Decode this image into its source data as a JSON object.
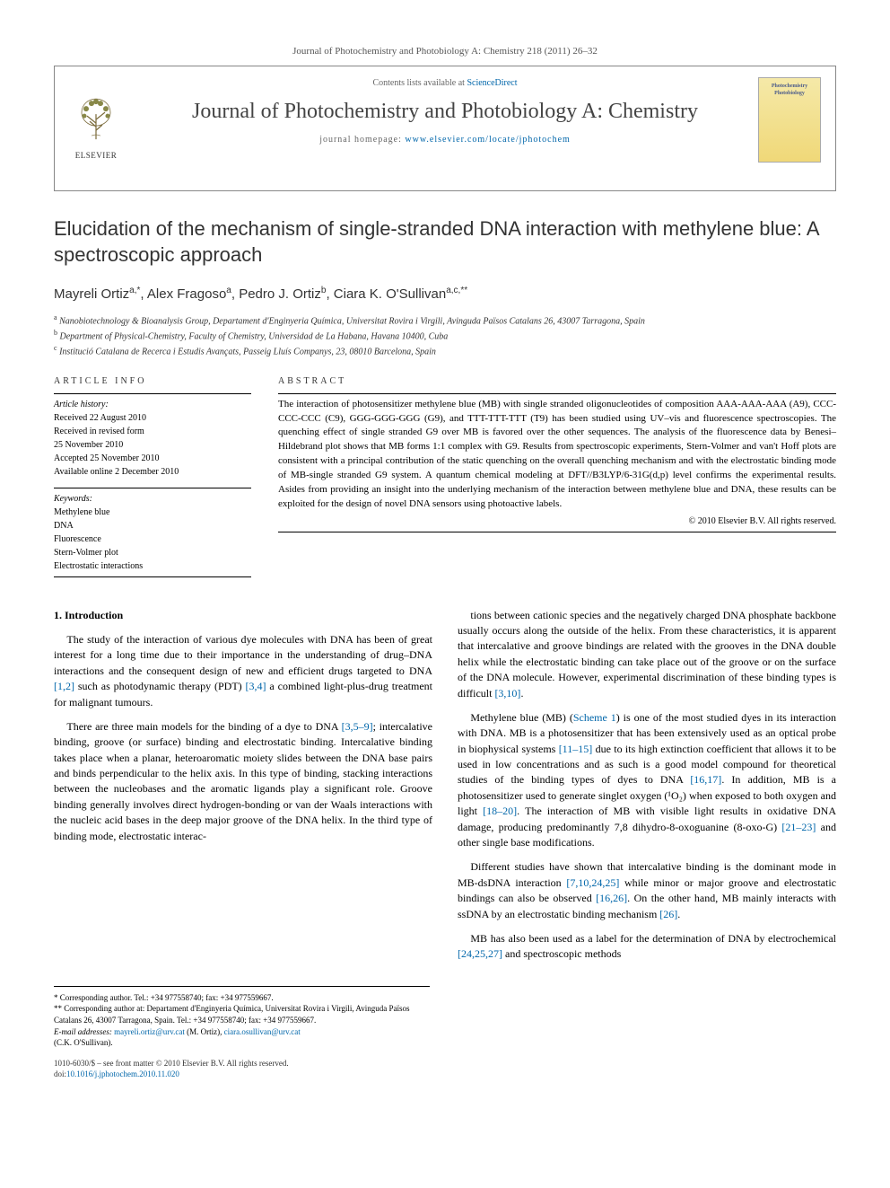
{
  "citation": "Journal of Photochemistry and Photobiology A: Chemistry 218 (2011) 26–32",
  "header": {
    "contents_prefix": "Contents lists available at ",
    "contents_link": "ScienceDirect",
    "journal_name": "Journal of Photochemistry and Photobiology A: Chemistry",
    "homepage_prefix": "journal homepage: ",
    "homepage_link": "www.elsevier.com/locate/jphotochem",
    "publisher": "ELSEVIER",
    "cover_title": "Photochemistry Photobiology"
  },
  "title": "Elucidation of the mechanism of single-stranded DNA interaction with methylene blue: A spectroscopic approach",
  "authors_html": "Mayreli Ortiz<sup>a,*</sup>, Alex Fragoso<sup>a</sup>, Pedro J. Ortiz<sup>b</sup>, Ciara K. O'Sullivan<sup>a,c,**</sup>",
  "affiliations": [
    "Nanobiotechnology & Bioanalysis Group, Departament d'Enginyeria Química, Universitat Rovira i Virgili, Avinguda Països Catalans 26, 43007 Tarragona, Spain",
    "Department of Physical-Chemistry, Faculty of Chemistry, Universidad de La Habana, Havana 10400, Cuba",
    "Institució Catalana de Recerca i Estudis Avançats, Passeig Lluís Companys, 23, 08010 Barcelona, Spain"
  ],
  "aff_labels": [
    "a",
    "b",
    "c"
  ],
  "info": {
    "heading": "ARTICLE INFO",
    "history_label": "Article history:",
    "history": [
      "Received 22 August 2010",
      "Received in revised form",
      "25 November 2010",
      "Accepted 25 November 2010",
      "Available online 2 December 2010"
    ],
    "keywords_label": "Keywords:",
    "keywords": [
      "Methylene blue",
      "DNA",
      "Fluorescence",
      "Stern-Volmer plot",
      "Electrostatic interactions"
    ]
  },
  "abstract": {
    "heading": "ABSTRACT",
    "text": "The interaction of photosensitizer methylene blue (MB) with single stranded oligonucleotides of composition AAA-AAA-AAA (A9), CCC-CCC-CCC (C9), GGG-GGG-GGG (G9), and TTT-TTT-TTT (T9) has been studied using UV–vis and fluorescence spectroscopies. The quenching effect of single stranded G9 over MB is favored over the other sequences. The analysis of the fluorescence data by Benesi–Hildebrand plot shows that MB forms 1:1 complex with G9. Results from spectroscopic experiments, Stern-Volmer and van't Hoff plots are consistent with a principal contribution of the static quenching on the overall quenching mechanism and with the electrostatic binding mode of MB-single stranded G9 system. A quantum chemical modeling at DFT//B3LYP/6-31G(d,p) level confirms the experimental results. Asides from providing an insight into the underlying mechanism of the interaction between methylene blue and DNA, these results can be exploited for the design of novel DNA sensors using photoactive labels.",
    "copyright": "© 2010 Elsevier B.V. All rights reserved."
  },
  "body": {
    "section_heading": "1. Introduction",
    "col1": [
      "The study of the interaction of various dye molecules with DNA has been of great interest for a long time due to their importance in the understanding of drug–DNA interactions and the consequent design of new and efficient drugs targeted to DNA [1,2] such as photodynamic therapy (PDT) [3,4] a combined light-plus-drug treatment for malignant tumours.",
      "There are three main models for the binding of a dye to DNA [3,5–9]; intercalative binding, groove (or surface) binding and electrostatic binding. Intercalative binding takes place when a planar, heteroaromatic moiety slides between the DNA base pairs and binds perpendicular to the helix axis. In this type of binding, stacking interactions between the nucleobases and the aromatic ligands play a significant role. Groove binding generally involves direct hydrogen-bonding or van der Waals interactions with the nucleic acid bases in the deep major groove of the DNA helix. In the third type of binding mode, electrostatic interac-"
    ],
    "col2": [
      "tions between cationic species and the negatively charged DNA phosphate backbone usually occurs along the outside of the helix. From these characteristics, it is apparent that intercalative and groove bindings are related with the grooves in the DNA double helix while the electrostatic binding can take place out of the groove or on the surface of the DNA molecule. However, experimental discrimination of these binding types is difficult [3,10].",
      "Methylene blue (MB) (Scheme 1) is one of the most studied dyes in its interaction with DNA. MB is a photosensitizer that has been extensively used as an optical probe in biophysical systems [11–15] due to its high extinction coefficient that allows it to be used in low concentrations and as such is a good model compound for theoretical studies of the binding types of dyes to DNA [16,17]. In addition, MB is a photosensitizer used to generate singlet oxygen (¹O₂) when exposed to both oxygen and light [18–20]. The interaction of MB with visible light results in oxidative DNA damage, producing predominantly 7,8 dihydro-8-oxoguanine (8-oxo-G) [21–23] and other single base modifications.",
      "Different studies have shown that intercalative binding is the dominant mode in MB-dsDNA interaction [7,10,24,25] while minor or major groove and electrostatic bindings can also be observed [16,26]. On the other hand, MB mainly interacts with ssDNA by an electrostatic binding mechanism [26].",
      "MB has also been used as a label for the determination of DNA by electrochemical [24,25,27] and spectroscopic methods"
    ]
  },
  "footnotes": {
    "corr1": "* Corresponding author. Tel.: +34 977558740; fax: +34 977559667.",
    "corr2": "** Corresponding author at: Departament d'Enginyeria Química, Universitat Rovira i Virgili, Avinguda Països Catalans 26, 43007 Tarragona, Spain. Tel.: +34 977558740; fax: +34 977559667.",
    "email_label": "E-mail addresses: ",
    "email1": "mayreli.ortiz@urv.cat",
    "email1_who": " (M. Ortiz), ",
    "email2": "ciara.osullivan@urv.cat",
    "email2_who": " (C.K. O'Sullivan)."
  },
  "bottom": {
    "issn": "1010-6030/$ – see front matter © 2010 Elsevier B.V. All rights reserved.",
    "doi_label": "doi:",
    "doi": "10.1016/j.jphotochem.2010.11.020"
  },
  "colors": {
    "link": "#0066aa",
    "text": "#000000",
    "heading": "#333333",
    "border": "#888888"
  }
}
